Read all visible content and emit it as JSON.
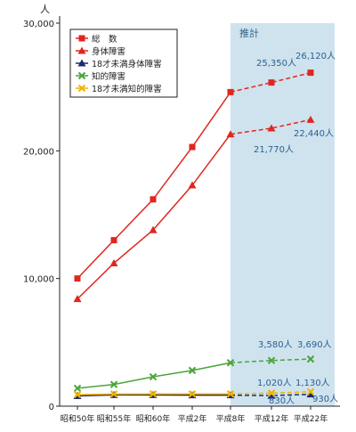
{
  "chart_data": {
    "type": "line",
    "y_unit": "人",
    "ylim": [
      0,
      30000
    ],
    "y_ticks": [
      0,
      10000,
      20000,
      30000
    ],
    "y_tick_labels": [
      "0",
      "10,000",
      "20,000",
      "30,000"
    ],
    "categories": [
      "昭和50年",
      "昭和55年",
      "昭和60年",
      "平成2年",
      "平成8年",
      "平成12年",
      "平成22年"
    ],
    "projection_label": "推計",
    "projection_start_index": 4,
    "grid": false,
    "legend_position": "top-left",
    "series": [
      {
        "name": "総　数",
        "color": "#e0261f",
        "marker": "square",
        "values": [
          10000,
          13000,
          16200,
          20300,
          24600,
          25350,
          26120
        ]
      },
      {
        "name": "身体障害",
        "color": "#e0261f",
        "marker": "triangle",
        "values": [
          8400,
          11200,
          13800,
          17300,
          21300,
          21770,
          22440
        ]
      },
      {
        "name": "18才未満身体障害",
        "color": "#1d2a6e",
        "marker": "triangle",
        "values": [
          800,
          880,
          880,
          860,
          860,
          830,
          930
        ]
      },
      {
        "name": "知的障害",
        "color": "#4aa53a",
        "marker": "x",
        "values": [
          1400,
          1700,
          2300,
          2800,
          3400,
          3580,
          3690
        ]
      },
      {
        "name": "18才未満知的障害",
        "color": "#f0b400",
        "marker": "x",
        "values": [
          900,
          950,
          960,
          960,
          960,
          1020,
          1130
        ]
      }
    ],
    "annotations": [
      {
        "series": 0,
        "point": 5,
        "text": "25,350人"
      },
      {
        "series": 0,
        "point": 6,
        "text": "26,120人"
      },
      {
        "series": 1,
        "point": 5,
        "text": "21,770人"
      },
      {
        "series": 1,
        "point": 6,
        "text": "22,440人"
      },
      {
        "series": 3,
        "point": 5,
        "text": "3,580人"
      },
      {
        "series": 3,
        "point": 6,
        "text": "3,690人"
      },
      {
        "series": 4,
        "point": 5,
        "text": "1,020人"
      },
      {
        "series": 4,
        "point": 6,
        "text": "1,130人"
      },
      {
        "series": 2,
        "point": 5,
        "text": "830人"
      },
      {
        "series": 2,
        "point": 6,
        "text": "930人"
      }
    ]
  }
}
